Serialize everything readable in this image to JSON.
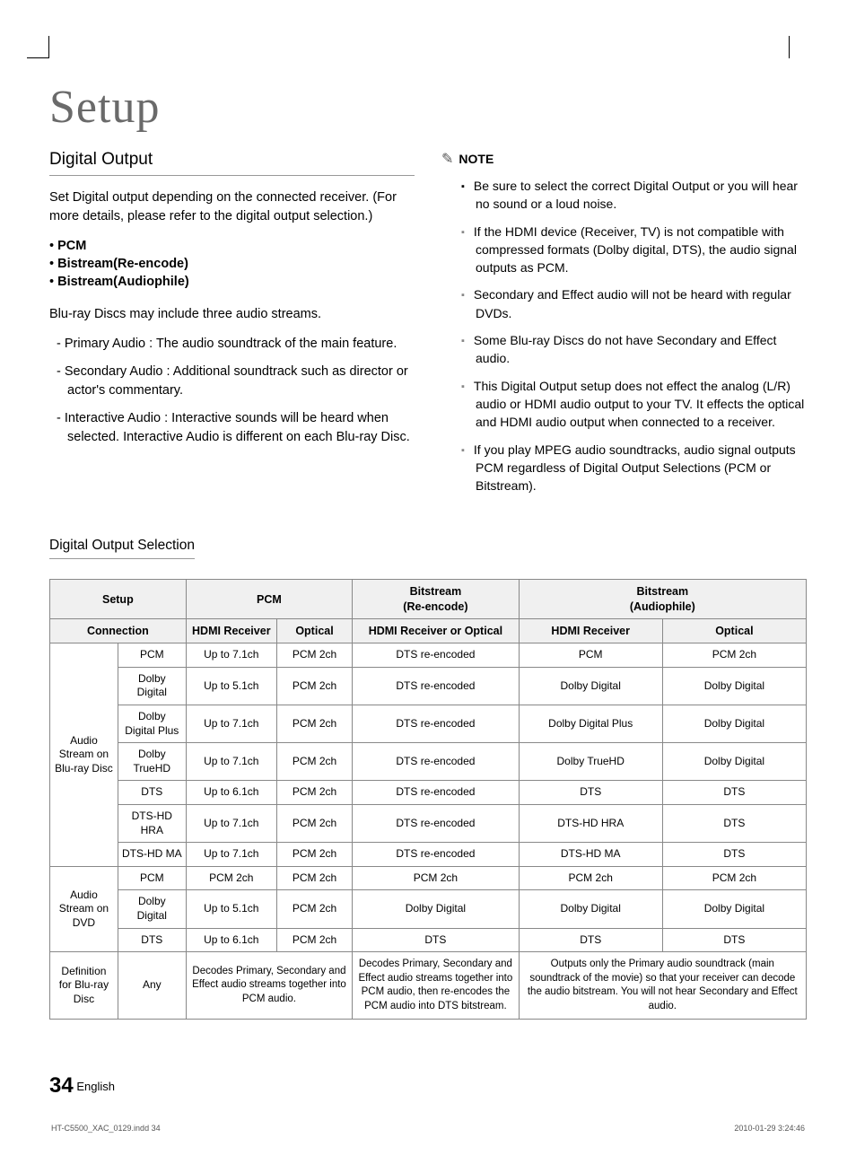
{
  "chapter_title": "Setup",
  "left": {
    "heading": "Digital Output",
    "intro": "Set Digital output depending on the connected receiver. (For more details, please refer to the digital output selection.)",
    "options": [
      "PCM",
      "Bistream(Re-encode)",
      "Bistream(Audiophile)"
    ],
    "streams_intro": "Blu-ray Discs may include three audio streams.",
    "streams": [
      "Primary Audio : The audio soundtrack of the main feature.",
      "Secondary Audio : Additional soundtrack such as director or actor's commentary.",
      "Interactive Audio : Interactive sounds will be heard when selected. Interactive Audio is different on each Blu-ray Disc."
    ]
  },
  "right": {
    "note_label": "NOTE",
    "notes": [
      "Be sure to select the correct Digital Output or you will hear no sound or a loud noise.",
      "If the HDMI device (Receiver, TV) is not compatible with compressed formats (Dolby digital, DTS), the audio signal outputs as PCM.",
      "Secondary and Effect audio will not be heard with regular DVDs.",
      "Some Blu-ray Discs do not have Secondary and Effect audio.",
      "This Digital Output setup does not effect the analog (L/R) audio or HDMI audio output to your TV.\nIt effects the optical and HDMI audio output when connected to a receiver.",
      "If you play MPEG audio soundtracks, audio signal outputs PCM regardless of Digital Output Selections (PCM or Bitstream)."
    ]
  },
  "table": {
    "heading": "Digital Output Selection",
    "top_headers": {
      "setup": "Setup",
      "pcm": "PCM",
      "bre": "Bitstream\n(Re-encode)",
      "bau": "Bitstream\n(Audiophile)"
    },
    "conn_row": {
      "label": "Connection",
      "cells": [
        "HDMI Receiver",
        "Optical",
        "HDMI Receiver or Optical",
        "HDMI Receiver",
        "Optical"
      ]
    },
    "group1_label": "Audio Stream on Blu-ray Disc",
    "group1_rows": [
      {
        "fmt": "PCM",
        "c": [
          "Up to 7.1ch",
          "PCM 2ch",
          "DTS re-encoded",
          "PCM",
          "PCM 2ch"
        ]
      },
      {
        "fmt": "Dolby Digital",
        "c": [
          "Up to 5.1ch",
          "PCM 2ch",
          "DTS re-encoded",
          "Dolby Digital",
          "Dolby Digital"
        ]
      },
      {
        "fmt": "Dolby Digital Plus",
        "c": [
          "Up to 7.1ch",
          "PCM 2ch",
          "DTS re-encoded",
          "Dolby Digital Plus",
          "Dolby Digital"
        ]
      },
      {
        "fmt": "Dolby TrueHD",
        "c": [
          "Up to 7.1ch",
          "PCM 2ch",
          "DTS re-encoded",
          "Dolby TrueHD",
          "Dolby Digital"
        ]
      },
      {
        "fmt": "DTS",
        "c": [
          "Up to 6.1ch",
          "PCM 2ch",
          "DTS re-encoded",
          "DTS",
          "DTS"
        ]
      },
      {
        "fmt": "DTS-HD HRA",
        "c": [
          "Up to 7.1ch",
          "PCM 2ch",
          "DTS re-encoded",
          "DTS-HD HRA",
          "DTS"
        ]
      },
      {
        "fmt": "DTS-HD MA",
        "c": [
          "Up to 7.1ch",
          "PCM 2ch",
          "DTS re-encoded",
          "DTS-HD MA",
          "DTS"
        ]
      }
    ],
    "group2_label": "Audio Stream on DVD",
    "group2_rows": [
      {
        "fmt": "PCM",
        "c": [
          "PCM 2ch",
          "PCM 2ch",
          "PCM 2ch",
          "PCM 2ch",
          "PCM 2ch"
        ]
      },
      {
        "fmt": "Dolby Digital",
        "c": [
          "Up to 5.1ch",
          "PCM 2ch",
          "Dolby Digital",
          "Dolby Digital",
          "Dolby Digital"
        ]
      },
      {
        "fmt": "DTS",
        "c": [
          "Up to 6.1ch",
          "PCM 2ch",
          "DTS",
          "DTS",
          "DTS"
        ]
      }
    ],
    "def_row": {
      "label": "Definition for Blu-ray Disc",
      "fmt": "Any",
      "pcm": "Decodes Primary, Secondary and Effect audio streams together into PCM audio.",
      "bre": "Decodes Primary, Secondary and Effect audio streams together into PCM audio, then re-encodes the PCM audio into DTS bitstream.",
      "bau": "Outputs only the Primary audio soundtrack (main soundtrack of the movie) so that your receiver can decode the audio bitstream. You will not hear Secondary and Effect audio."
    },
    "col_widths": [
      "9%",
      "9%",
      "12%",
      "10%",
      "22%",
      "19%",
      "19%"
    ]
  },
  "footer": {
    "page_num": "34",
    "lang": "English"
  },
  "print": {
    "left": "HT-C5500_XAC_0129.indd   34",
    "right": "2010-01-29    3:24:46"
  },
  "colors": {
    "title_gray": "#6a6a6a",
    "border_gray": "#888888",
    "header_bg": "#f0f0f0",
    "bullet_gray": "#888888"
  }
}
